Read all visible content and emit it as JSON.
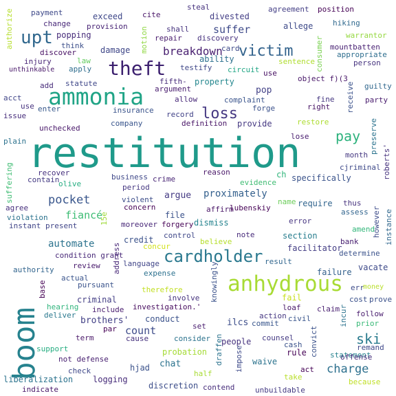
{
  "words": [
    {
      "text": "restitution",
      "color": "#1f9a8a"
    },
    {
      "text": "ammonia",
      "color": "#20a486"
    },
    {
      "text": "anhydrous",
      "color": "#a8db34"
    },
    {
      "text": "theft",
      "color": "#3b1f6e"
    },
    {
      "text": "boom",
      "color": "#26828e"
    },
    {
      "text": "cardholder",
      "color": "#2a788e"
    },
    {
      "text": "upt",
      "color": "#31688e"
    },
    {
      "text": "victim",
      "color": "#33638d"
    },
    {
      "text": "loss",
      "color": "#453882"
    },
    {
      "text": "pay",
      "color": "#2db27d"
    },
    {
      "text": "ski",
      "color": "#2a7b8e"
    },
    {
      "text": "pocket",
      "color": "#39568c"
    },
    {
      "text": "charge",
      "color": "#2d708e"
    },
    {
      "text": "breakdown",
      "color": "#481f70"
    },
    {
      "text": "suffer",
      "color": "#3e4a89"
    },
    {
      "text": "automate",
      "color": "#2c738e"
    },
    {
      "text": "fiancé",
      "color": "#3dbc74"
    },
    {
      "text": "count",
      "color": "#3e4c8a"
    },
    {
      "text": "brothers'",
      "color": "#424086"
    },
    {
      "text": "proximately",
      "color": "#34608d"
    },
    {
      "text": "exceed",
      "color": "#3f4889"
    },
    {
      "text": "divested",
      "color": "#433e85"
    },
    {
      "text": "agreement",
      "color": "#433e85"
    },
    {
      "text": "position",
      "color": "#440154"
    },
    {
      "text": "payment",
      "color": "#3e4989"
    },
    {
      "text": "steal",
      "color": "#46327e"
    },
    {
      "text": "cite",
      "color": "#481567"
    },
    {
      "text": "change",
      "color": "#482878"
    },
    {
      "text": "provision",
      "color": "#482475"
    },
    {
      "text": "shall",
      "color": "#46327e"
    },
    {
      "text": "allege",
      "color": "#3e4a89"
    },
    {
      "text": "hiking",
      "color": "#30698e"
    },
    {
      "text": "popping",
      "color": "#472c7a"
    },
    {
      "text": "repair",
      "color": "#481b6d"
    },
    {
      "text": "discovery",
      "color": "#46307e"
    },
    {
      "text": "warrantor",
      "color": "#95d840"
    },
    {
      "text": "think",
      "color": "#3c4f8a"
    },
    {
      "text": "mountbatten",
      "color": "#482173"
    },
    {
      "text": "discover",
      "color": "#471063"
    },
    {
      "text": "damage",
      "color": "#3f4788"
    },
    {
      "text": "appropriate",
      "color": "#2e6e8e"
    },
    {
      "text": "injury",
      "color": "#482576"
    },
    {
      "text": "law",
      "color": "#63cb5f"
    },
    {
      "text": "ability",
      "color": "#2d718e"
    },
    {
      "text": "sentence",
      "color": "#b0dd2f"
    },
    {
      "text": "person",
      "color": "#46337f"
    },
    {
      "text": "unthinkable",
      "color": "#481769"
    },
    {
      "text": "apply",
      "color": "#2e6d8e"
    },
    {
      "text": "testify",
      "color": "#3f4788"
    },
    {
      "text": "circuit",
      "color": "#21a685"
    },
    {
      "text": "use",
      "color": "#471063"
    },
    {
      "text": "statute",
      "color": "#3f4788"
    },
    {
      "text": "property",
      "color": "#24878e"
    },
    {
      "text": "object f)(3",
      "color": "#481668"
    },
    {
      "text": "add",
      "color": "#472c7a"
    },
    {
      "text": "argument",
      "color": "#481c6e"
    },
    {
      "text": "pop",
      "color": "#424186"
    },
    {
      "text": "guilty",
      "color": "#31688e"
    },
    {
      "text": "acct",
      "color": "#404588"
    },
    {
      "text": "allow",
      "color": "#482878"
    },
    {
      "text": "complaint",
      "color": "#3a548c"
    },
    {
      "text": "fine",
      "color": "#453781"
    },
    {
      "text": "party",
      "color": "#481b6d"
    },
    {
      "text": "use",
      "color": "#46327e"
    },
    {
      "text": "enter",
      "color": "#38598c"
    },
    {
      "text": "insurance",
      "color": "#3a538b"
    },
    {
      "text": "forge",
      "color": "#3b518b"
    },
    {
      "text": "right",
      "color": "#471365"
    },
    {
      "text": "issue",
      "color": "#472d7b"
    },
    {
      "text": "record",
      "color": "#414287"
    },
    {
      "text": "definition",
      "color": "#471365"
    },
    {
      "text": "unchecked",
      "color": "#481769"
    },
    {
      "text": "company",
      "color": "#39558c"
    },
    {
      "text": "provide",
      "color": "#453882"
    },
    {
      "text": "restore",
      "color": "#addc30"
    },
    {
      "text": "plain",
      "color": "#2c728e"
    },
    {
      "text": "lose",
      "color": "#481c6e"
    },
    {
      "text": "recover",
      "color": "#46307e"
    },
    {
      "text": "contain",
      "color": "#443a83"
    },
    {
      "text": "reason",
      "color": "#481668"
    },
    {
      "text": "month",
      "color": "#453781"
    },
    {
      "text": "cjriminal",
      "color": "#3e4989"
    },
    {
      "text": "olive",
      "color": "#26ad81"
    },
    {
      "text": "business",
      "color": "#3f4889"
    },
    {
      "text": "crime",
      "color": "#482575"
    },
    {
      "text": "evidence",
      "color": "#3fbc73"
    },
    {
      "text": "specifically",
      "color": "#3a538b"
    },
    {
      "text": "period",
      "color": "#453781"
    },
    {
      "text": "argue",
      "color": "#443a83"
    },
    {
      "text": "name",
      "color": "#6ccd5a"
    },
    {
      "text": "agree",
      "color": "#472f7d"
    },
    {
      "text": "violent",
      "color": "#3d4e8a"
    },
    {
      "text": "concern",
      "color": "#440154"
    },
    {
      "text": "affirm",
      "color": "#471365"
    },
    {
      "text": "lubenskiy",
      "color": "#440154"
    },
    {
      "text": "require",
      "color": "#32658e"
    },
    {
      "text": "thus",
      "color": "#46327e"
    },
    {
      "text": "violation",
      "color": "#2c738e"
    },
    {
      "text": "file",
      "color": "#3b528b"
    },
    {
      "text": "assess",
      "color": "#32658e"
    },
    {
      "text": "instant present",
      "color": "#404588"
    },
    {
      "text": "moreover",
      "color": "#482878"
    },
    {
      "text": "forgery",
      "color": "#440154"
    },
    {
      "text": "dismiss",
      "color": "#25838e"
    },
    {
      "text": "error",
      "color": "#463480"
    },
    {
      "text": "amend",
      "color": "#32b67a"
    },
    {
      "text": "credit",
      "color": "#3b528b"
    },
    {
      "text": "control",
      "color": "#3f4788"
    },
    {
      "text": "note",
      "color": "#472a7a"
    },
    {
      "text": "section",
      "color": "#287d8e"
    },
    {
      "text": "bank",
      "color": "#482071"
    },
    {
      "text": "concur",
      "color": "#d2e21b"
    },
    {
      "text": "believe",
      "color": "#b5de2b"
    },
    {
      "text": "facilitator",
      "color": "#433d84"
    },
    {
      "text": "condition grant",
      "color": "#482878"
    },
    {
      "text": "determine",
      "color": "#3b528b"
    },
    {
      "text": "language",
      "color": "#404588"
    },
    {
      "text": "result",
      "color": "#31668e"
    },
    {
      "text": "vacate",
      "color": "#3e4a89"
    },
    {
      "text": "review",
      "color": "#481a6c"
    },
    {
      "text": "authority",
      "color": "#32658e"
    },
    {
      "text": "expense",
      "color": "#2c718e"
    },
    {
      "text": "failure",
      "color": "#34618d"
    },
    {
      "text": "actual",
      "color": "#3a548c"
    },
    {
      "text": "pursuant",
      "color": "#3a538b"
    },
    {
      "text": "err",
      "color": "#3e4c8a"
    },
    {
      "text": "money",
      "color": "#b8de29"
    },
    {
      "text": "therefore",
      "color": "#c2df23"
    },
    {
      "text": "involve",
      "color": "#46337f"
    },
    {
      "text": "cost",
      "color": "#3b518b"
    },
    {
      "text": "prove",
      "color": "#3b518b"
    },
    {
      "text": "criminal",
      "color": "#433e85"
    },
    {
      "text": "hearing",
      "color": "#2fb47c"
    },
    {
      "text": "include",
      "color": "#481c6e"
    },
    {
      "text": "investigation.'",
      "color": "#460b5e"
    },
    {
      "text": "fail",
      "color": "#c8e020"
    },
    {
      "text": "loaf",
      "color": "#481769"
    },
    {
      "text": "claim",
      "color": "#481f70"
    },
    {
      "text": "deliver",
      "color": "#2a788e"
    },
    {
      "text": "follow",
      "color": "#481b6d"
    },
    {
      "text": "conduct",
      "color": "#3b528b"
    },
    {
      "text": "set",
      "color": "#481c6e"
    },
    {
      "text": "ilcs",
      "color": "#3d4e8a"
    },
    {
      "text": "action",
      "color": "#453781"
    },
    {
      "text": "commit",
      "color": "#39568c"
    },
    {
      "text": "civil",
      "color": "#39558c"
    },
    {
      "text": "prior",
      "color": "#38b977"
    },
    {
      "text": "term",
      "color": "#481668"
    },
    {
      "text": "cause",
      "color": "#46327e"
    },
    {
      "text": "consider",
      "color": "#2c738e"
    },
    {
      "text": "people",
      "color": "#46327e"
    },
    {
      "text": "counsel",
      "color": "#443a83"
    },
    {
      "text": "cash",
      "color": "#3b528b"
    },
    {
      "text": "rule",
      "color": "#440154"
    },
    {
      "text": "remand",
      "color": "#3f4889"
    },
    {
      "text": "support",
      "color": "#26ad81"
    },
    {
      "text": "probation",
      "color": "#a5db36"
    },
    {
      "text": "waive",
      "color": "#2c738e"
    },
    {
      "text": "statement",
      "color": "#26828e"
    },
    {
      "text": "offense",
      "color": "#472d7b"
    },
    {
      "text": "not defense",
      "color": "#482071"
    },
    {
      "text": "hjad",
      "color": "#3b528b"
    },
    {
      "text": "chat",
      "color": "#2c738e"
    },
    {
      "text": "check",
      "color": "#3f4889"
    },
    {
      "text": "half",
      "color": "#a8db34"
    },
    {
      "text": "act",
      "color": "#440154"
    },
    {
      "text": "liberalization",
      "color": "#2c738e"
    },
    {
      "text": "logging",
      "color": "#472c7a"
    },
    {
      "text": "take",
      "color": "#b8de29"
    },
    {
      "text": "because",
      "color": "#c0df25"
    },
    {
      "text": "indicate",
      "color": "#481769"
    },
    {
      "text": "discretion",
      "color": "#3d4e8a"
    },
    {
      "text": "contend",
      "color": "#472d7b"
    },
    {
      "text": "unbuildable",
      "color": "#443a83"
    },
    {
      "text": "authorize",
      "color": "#b5de2b"
    },
    {
      "text": "motion",
      "color": "#90d743"
    },
    {
      "text": "card",
      "color": "#3e4a89"
    },
    {
      "text": "fifth-",
      "color": "#472c7a"
    },
    {
      "text": "consumer",
      "color": "#7ad151"
    },
    {
      "text": "receive",
      "color": "#3b528b"
    },
    {
      "text": "preserve",
      "color": "#2c738e"
    },
    {
      "text": "roberts'",
      "color": "#46327e"
    },
    {
      "text": "suffering",
      "color": "#3fbc73"
    },
    {
      "text": "ch",
      "color": "#31b57b"
    },
    {
      "text": "15e",
      "color": "#a0da39"
    },
    {
      "text": "however",
      "color": "#3e4c8a"
    },
    {
      "text": "instance",
      "color": "#31688e"
    },
    {
      "text": "address",
      "color": "#482878"
    },
    {
      "text": "par",
      "color": "#440154"
    },
    {
      "text": "base",
      "color": "#440154"
    },
    {
      "text": "knowingly",
      "color": "#3b528b"
    },
    {
      "text": "incur",
      "color": "#2c738e"
    },
    {
      "text": "convict",
      "color": "#3b528b"
    },
    {
      "text": "draffen",
      "color": "#2c738e"
    },
    {
      "text": "impose",
      "color": "#3e4a89"
    }
  ]
}
